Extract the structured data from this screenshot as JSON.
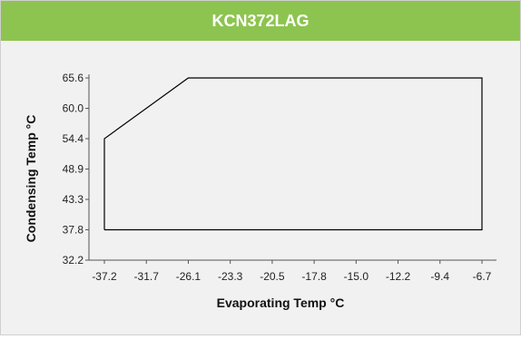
{
  "chart_data": {
    "type": "line",
    "title": "KCN372LAG",
    "xlabel": "Evaporating Temp °C",
    "ylabel": "Condensing Temp °C",
    "x_ticks": [
      "-37.2",
      "-31.7",
      "-26.1",
      "-23.3",
      "-20.5",
      "-17.8",
      "-15.0",
      "-12.2",
      "-9.4",
      "-6.7"
    ],
    "y_ticks": [
      "32.2",
      "37.8",
      "43.3",
      "48.9",
      "54.4",
      "60.0",
      "65.6"
    ],
    "grid": false,
    "legend": "none",
    "series": [
      {
        "points": [
          {
            "x": -37.2,
            "y": 37.8
          },
          {
            "x": -37.2,
            "y": 54.4
          },
          {
            "x": -26.1,
            "y": 65.6
          },
          {
            "x": -6.7,
            "y": 65.6
          },
          {
            "x": -6.7,
            "y": 37.8
          },
          {
            "x": -37.2,
            "y": 37.8
          }
        ]
      }
    ],
    "colors": {
      "header": "#8dc44f",
      "background": "#f1f1f1",
      "line": "#000000"
    }
  }
}
